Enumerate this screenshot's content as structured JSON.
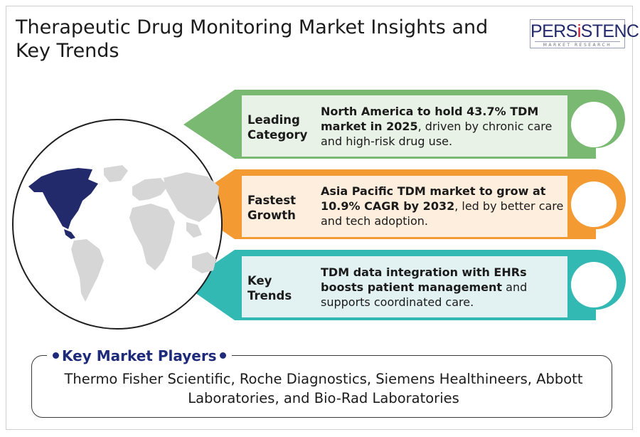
{
  "header": {
    "title": "Therapeutic Drug Monitoring Market Insights and Key Trends"
  },
  "logo": {
    "wordmark": "PERSISTENCE",
    "tagline": "MARKET RESEARCH"
  },
  "rows": [
    {
      "label": "Leading Category",
      "highlight": "North America to hold 43.7% TDM market in 2025",
      "detail": ", driven by chronic care and high-risk drug use.",
      "color": "#79b971"
    },
    {
      "label": "Fastest Growth",
      "highlight": "Asia Pacific TDM market to grow at 10.9% CAGR by 2032",
      "detail": ", led by better care and tech adoption.",
      "color": "#f49a33"
    },
    {
      "label": "Key Trends",
      "highlight": "TDM data integration with EHRs boosts patient management",
      "detail": " and supports coordinated care.",
      "color": "#33b9b4"
    }
  ],
  "key_players": {
    "title": "Key Market Players",
    "text": "Thermo Fisher Scientific, Roche Diagnostics, Siemens Healthineers, Abbott Laboratories, and Bio-Rad Laboratories"
  },
  "colors": {
    "brand_navy": "#1e2a7a",
    "map_highlight": "#232a6b",
    "map_land": "#d6d6d6"
  }
}
